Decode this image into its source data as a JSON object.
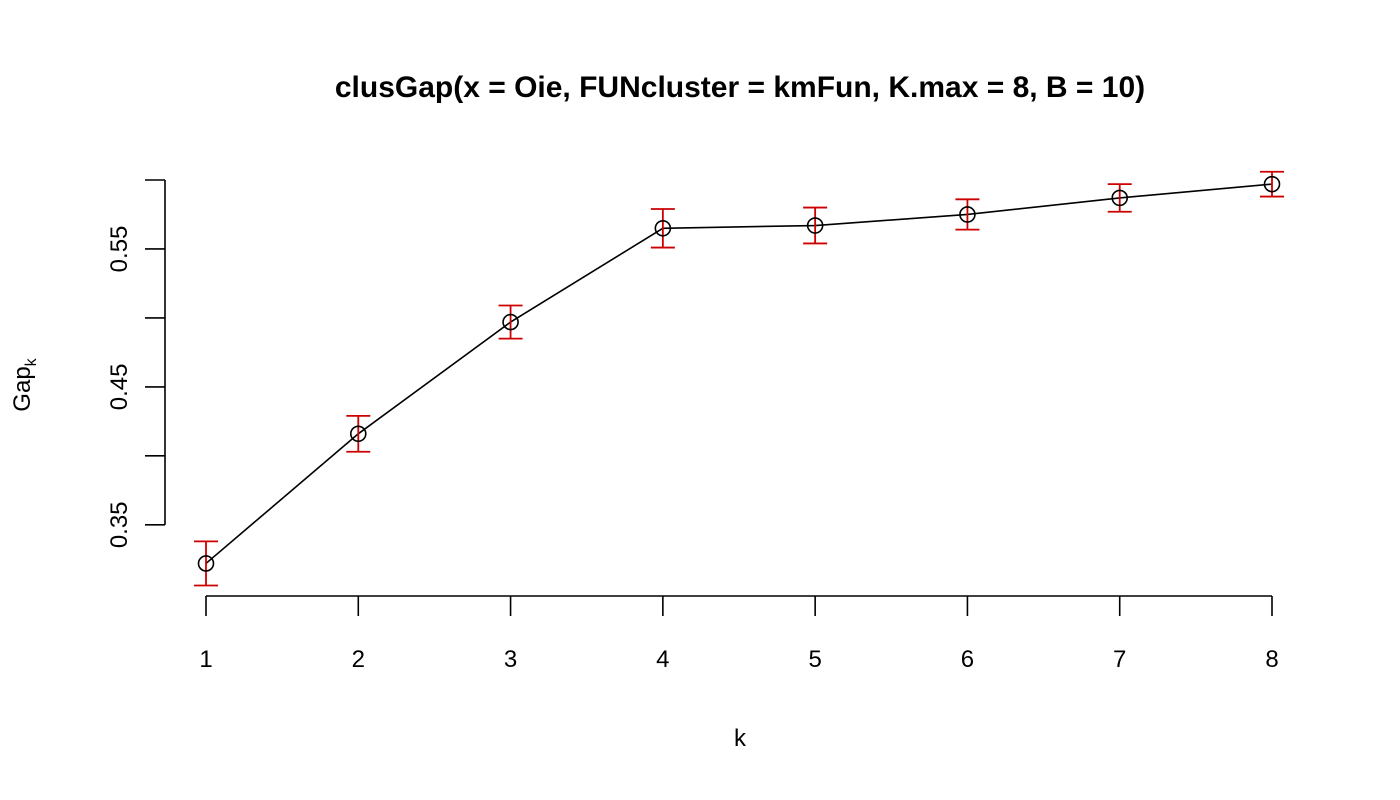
{
  "chart_data": {
    "type": "line",
    "title": "clusGap(x = Oie, FUNcluster = kmFun, K.max = 8, B = 10)",
    "xlabel": "k",
    "ylabel": "Gap",
    "ylabel_subscript": "k",
    "x": [
      1,
      2,
      3,
      4,
      5,
      6,
      7,
      8
    ],
    "y": [
      0.322,
      0.416,
      0.497,
      0.565,
      0.567,
      0.575,
      0.587,
      0.597
    ],
    "se": [
      0.016,
      0.013,
      0.012,
      0.014,
      0.013,
      0.011,
      0.01,
      0.009
    ],
    "xlim": [
      1,
      8
    ],
    "ylim": [
      0.31,
      0.6
    ],
    "x_ticks": [
      "1",
      "2",
      "3",
      "4",
      "5",
      "6",
      "7",
      "8"
    ],
    "y_ticks": [
      0.35,
      0.4,
      0.45,
      0.5,
      0.55,
      0.6
    ],
    "y_tick_labels": [
      "0.35",
      "",
      "0.45",
      "",
      "0.55",
      ""
    ],
    "grid": false,
    "legend": "none",
    "colors": {
      "line": "#000000",
      "points": "#000000",
      "error_bars": "#cc0000"
    }
  }
}
